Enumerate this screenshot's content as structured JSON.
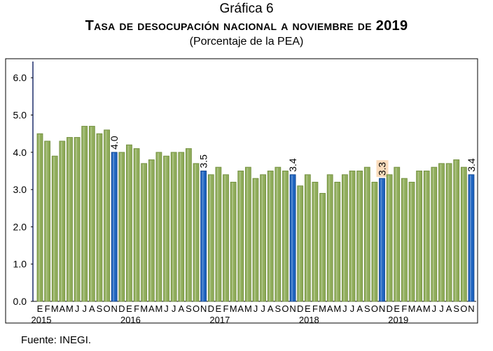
{
  "chart_data": {
    "type": "bar",
    "title": "Gráfica 6",
    "subtitle": "Tasa de desocupación nacional a noviembre de 2019",
    "subtitle2": "(Porcentaje de la PEA)",
    "source": "Fuente: INEGI.",
    "ylim": [
      0,
      6.5
    ],
    "yticks": [
      "0.0",
      "1.0",
      "2.0",
      "3.0",
      "4.0",
      "5.0",
      "6.0"
    ],
    "month_labels": [
      "E",
      "F",
      "M",
      "A",
      "M",
      "J",
      "J",
      "A",
      "S",
      "O",
      "N",
      "D"
    ],
    "years": [
      "2015",
      "2016",
      "2017",
      "2018",
      "2019"
    ],
    "values": [
      4.5,
      4.3,
      3.9,
      4.3,
      4.4,
      4.4,
      4.7,
      4.7,
      4.5,
      4.6,
      4.0,
      4.0,
      4.2,
      4.1,
      3.7,
      3.8,
      4.0,
      3.9,
      4.0,
      4.0,
      4.1,
      3.7,
      3.5,
      3.4,
      3.6,
      3.4,
      3.2,
      3.5,
      3.6,
      3.3,
      3.4,
      3.5,
      3.6,
      3.5,
      3.4,
      3.1,
      3.4,
      3.2,
      2.9,
      3.4,
      3.2,
      3.4,
      3.5,
      3.5,
      3.6,
      3.2,
      3.3,
      3.4,
      3.6,
      3.3,
      3.2,
      3.5,
      3.5,
      3.6,
      3.7,
      3.7,
      3.8,
      3.6,
      3.4
    ],
    "highlights": [
      {
        "index": 10,
        "label": "4.0"
      },
      {
        "index": 22,
        "label": "3.5"
      },
      {
        "index": 34,
        "label": "3.4"
      },
      {
        "index": 46,
        "label": "3.3"
      },
      {
        "index": 58,
        "label": "3.4"
      }
    ],
    "colors": {
      "bar": "#8fac5a",
      "highlight": "#1f64c0",
      "label_bg": "#fbdcbc",
      "frame": "#1f2f6b"
    }
  }
}
